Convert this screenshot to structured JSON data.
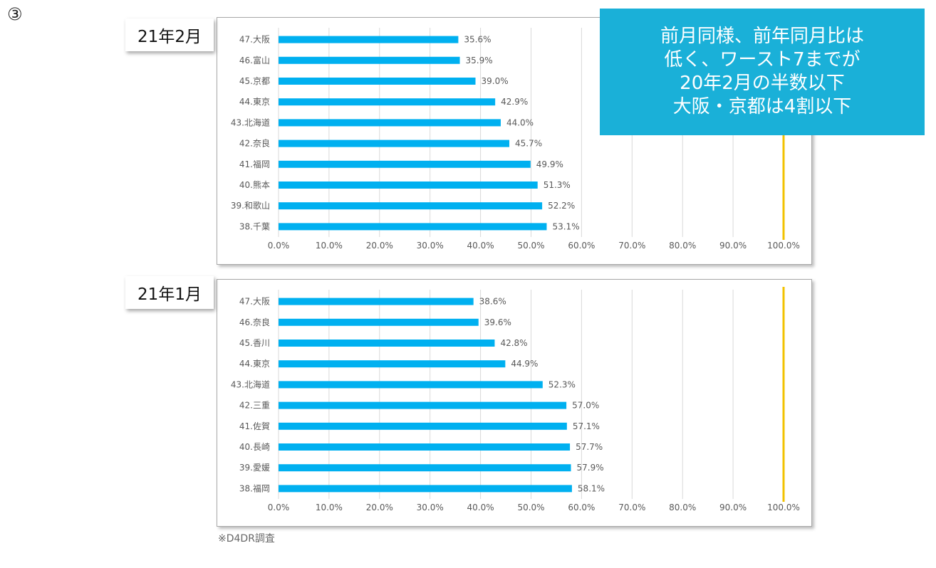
{
  "slide_number": "③",
  "callout": {
    "lines": [
      "前月同様、前年同月比は",
      "低く、ワースト7までが",
      "20年2月の半数以下",
      "大阪・京都は4割以下"
    ]
  },
  "source_note": "※D4DR調査",
  "colors": {
    "bar": "#00b0f0",
    "reference_line": "#f2c200",
    "grid": "#d9d9d9",
    "callout_bg": "#1ab0d8"
  },
  "chart_data": [
    {
      "type": "bar",
      "orientation": "horizontal",
      "label": "21年2月",
      "categories": [
        "47.大阪",
        "46.富山",
        "45.京都",
        "44.東京",
        "43.北海道",
        "42.奈良",
        "41.福岡",
        "40.熊本",
        "39.和歌山",
        "38.千葉"
      ],
      "values": [
        35.6,
        35.9,
        39.0,
        42.9,
        44.0,
        45.7,
        49.9,
        51.3,
        52.2,
        53.1
      ],
      "value_labels": [
        "35.6%",
        "35.9%",
        "39.0%",
        "42.9%",
        "44.0%",
        "45.7%",
        "49.9%",
        "51.3%",
        "52.2%",
        "53.1%"
      ],
      "xlim": [
        0,
        100
      ],
      "x_ticks": [
        "0.0%",
        "10.0%",
        "20.0%",
        "30.0%",
        "40.0%",
        "50.0%",
        "60.0%",
        "70.0%",
        "80.0%",
        "90.0%",
        "100.0%"
      ],
      "reference_line": 100,
      "grid": true
    },
    {
      "type": "bar",
      "orientation": "horizontal",
      "label": "21年1月",
      "categories": [
        "47.大阪",
        "46.奈良",
        "45.香川",
        "44.東京",
        "43.北海道",
        "42.三重",
        "41.佐賀",
        "40.長崎",
        "39.愛媛",
        "38.福岡"
      ],
      "values": [
        38.6,
        39.6,
        42.8,
        44.9,
        52.3,
        57.0,
        57.1,
        57.7,
        57.9,
        58.1
      ],
      "value_labels": [
        "38.6%",
        "39.6%",
        "42.8%",
        "44.9%",
        "52.3%",
        "57.0%",
        "57.1%",
        "57.7%",
        "57.9%",
        "58.1%"
      ],
      "xlim": [
        0,
        100
      ],
      "x_ticks": [
        "0.0%",
        "10.0%",
        "20.0%",
        "30.0%",
        "40.0%",
        "50.0%",
        "60.0%",
        "70.0%",
        "80.0%",
        "90.0%",
        "100.0%"
      ],
      "reference_line": 100,
      "grid": true
    }
  ]
}
